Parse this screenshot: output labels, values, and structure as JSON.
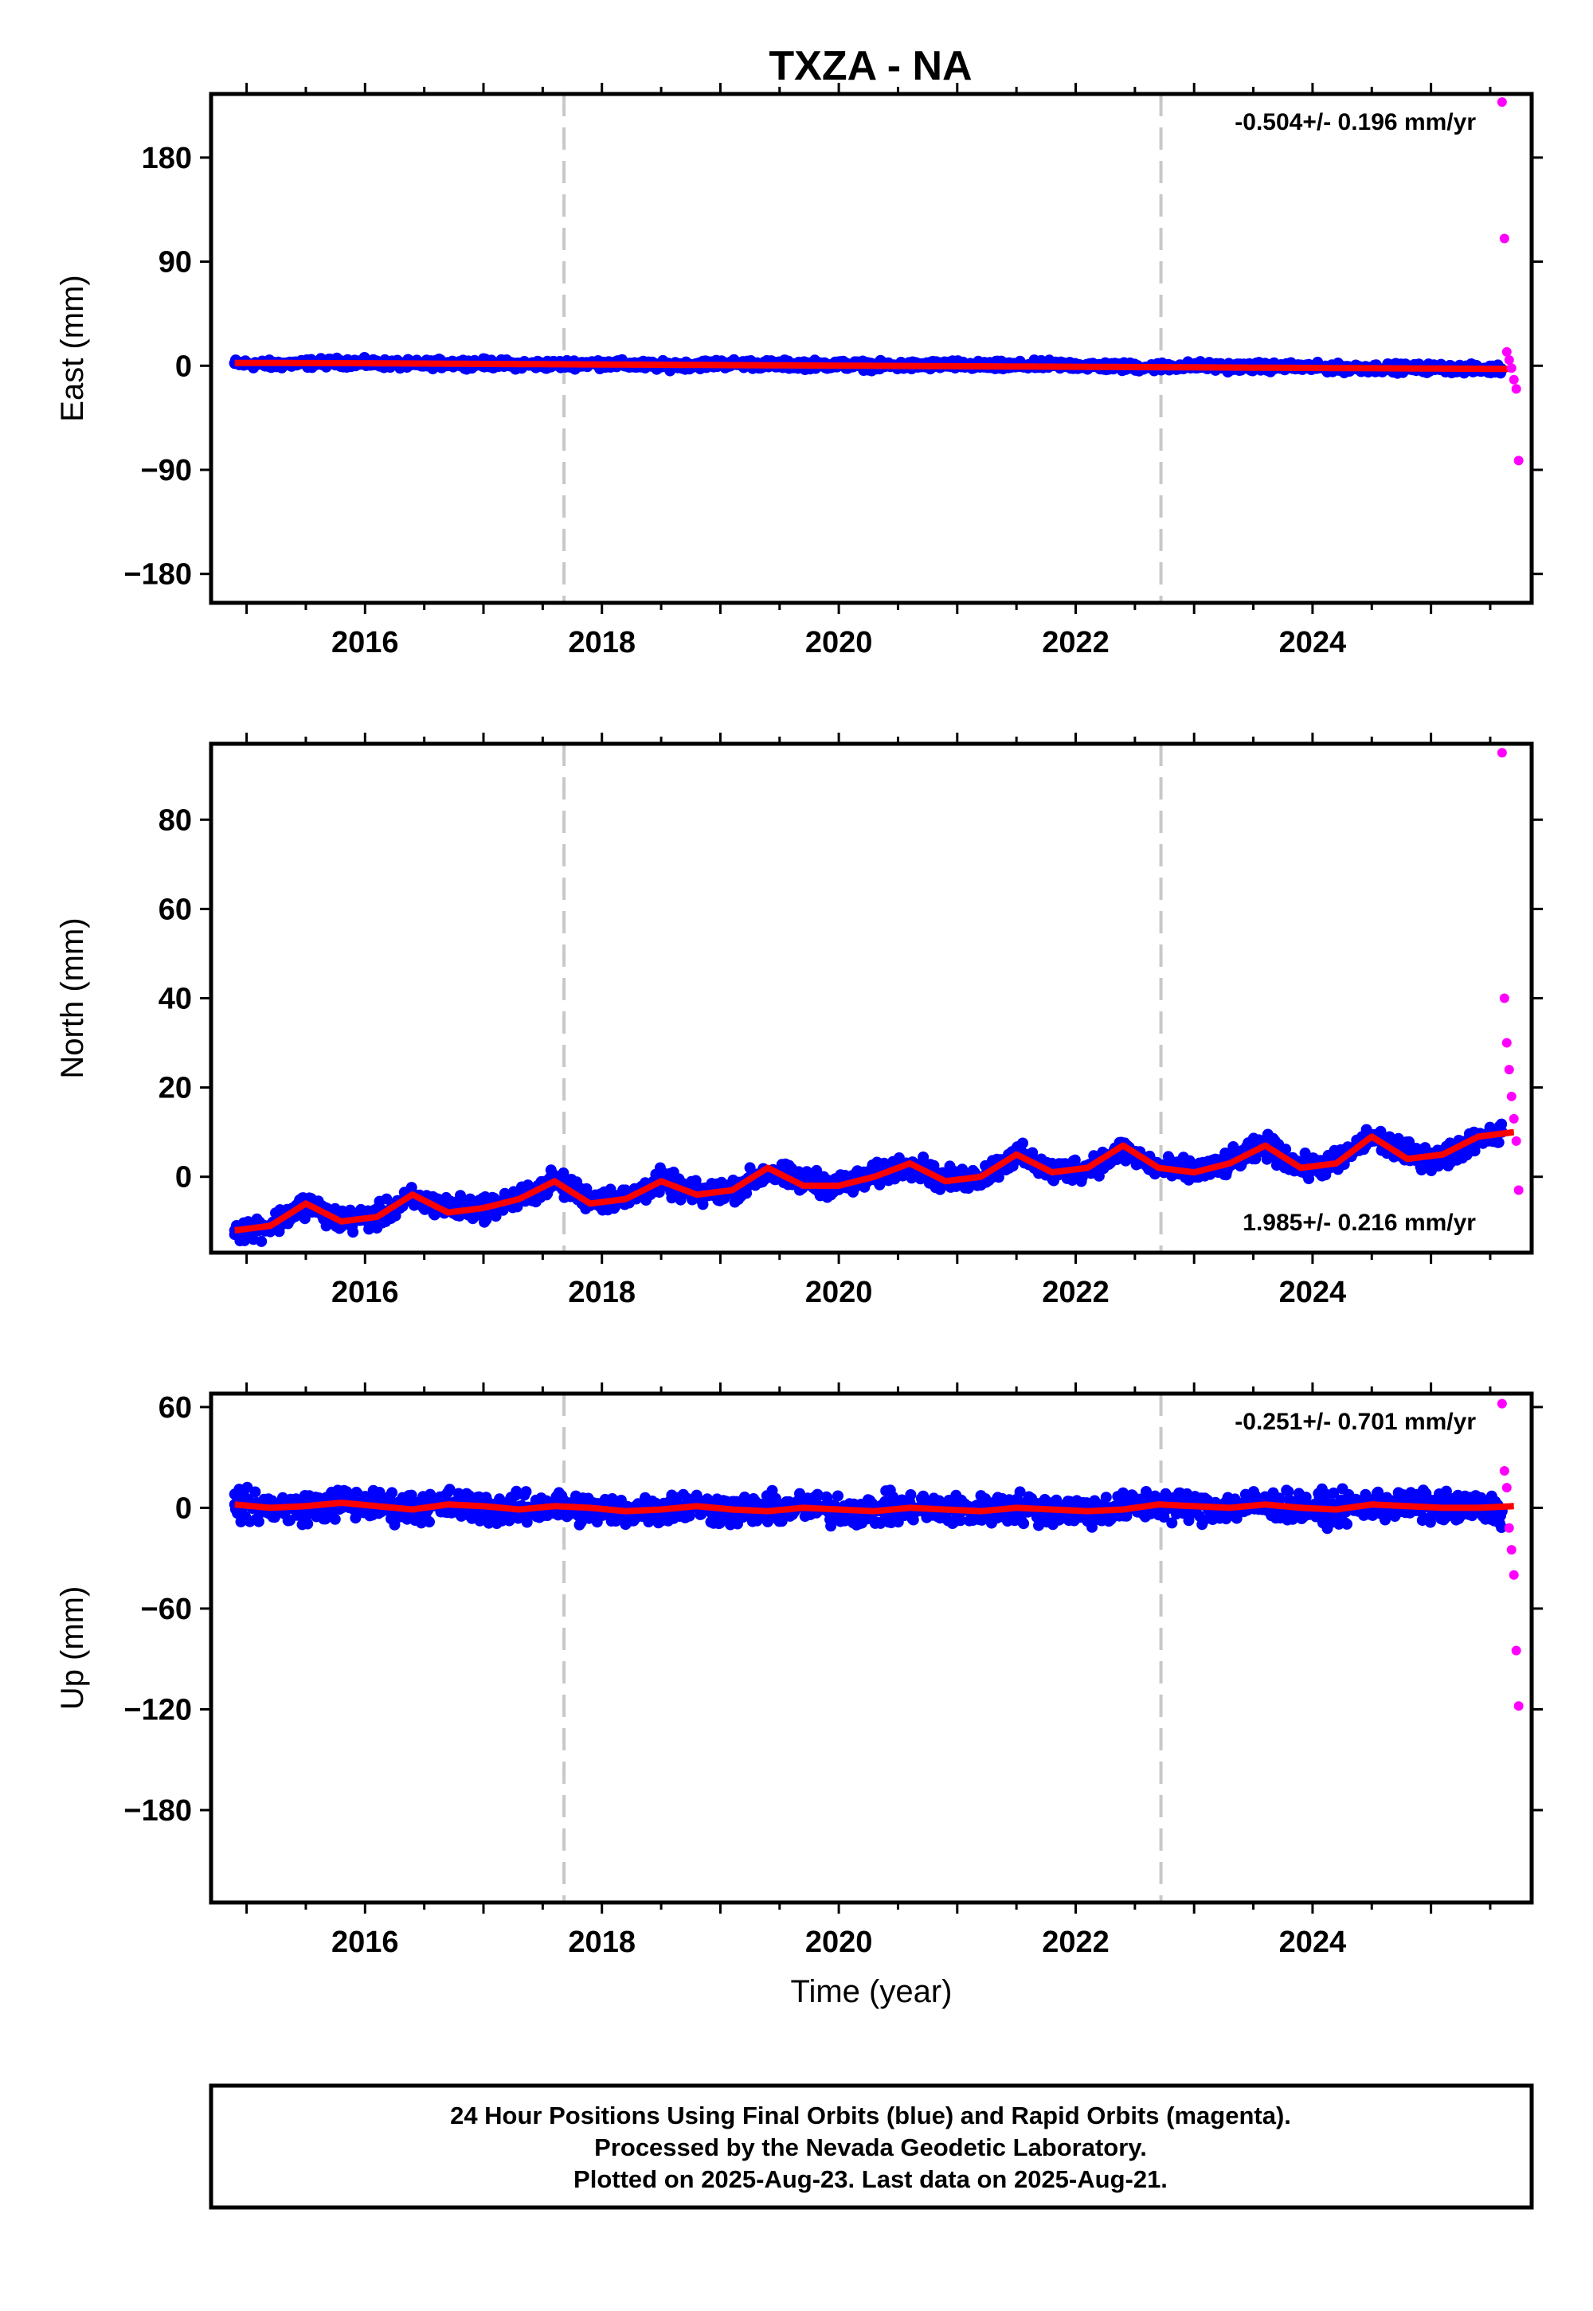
{
  "title": "TXZA - NA",
  "chart_data": [
    {
      "type": "scatter",
      "ylabel": "East (mm)",
      "xlabel": "",
      "xlim": [
        2014.7,
        2025.85
      ],
      "ylim": [
        -205,
        235
      ],
      "yticks": [
        -180,
        -90,
        0,
        90,
        180
      ],
      "ytick_labels": [
        "−180",
        "−90",
        "0",
        "90",
        "180"
      ],
      "xticks": [
        2016,
        2018,
        2020,
        2022,
        2024
      ],
      "xtick_labels": [
        "2016",
        "2018",
        "2020",
        "2022",
        "2024"
      ],
      "breaks": [
        2017.68,
        2022.72
      ],
      "rate_label": "-0.504+/- 0.196 mm/yr",
      "rate_position": "top-right",
      "series": [
        {
          "color": "#0000ff",
          "x": [
            2014.9,
            2015.2,
            2015.5,
            2015.8,
            2016.1,
            2016.4,
            2016.7,
            2017.0,
            2017.3,
            2017.6,
            2017.9,
            2018.2,
            2018.5,
            2018.8,
            2019.1,
            2019.4,
            2019.7,
            2020.0,
            2020.3,
            2020.6,
            2020.9,
            2021.2,
            2021.5,
            2021.8,
            2022.1,
            2022.4,
            2022.7,
            2023.0,
            2023.3,
            2023.6,
            2023.9,
            2024.2,
            2024.5,
            2024.8,
            2025.1,
            2025.4,
            2025.6
          ],
          "values": [
            2,
            1,
            2,
            3,
            2,
            1,
            2,
            2,
            1,
            1,
            2,
            1,
            0,
            1,
            2,
            1,
            1,
            1,
            0,
            0,
            1,
            0,
            0,
            1,
            0,
            -1,
            -1,
            0,
            -1,
            -1,
            -1,
            -2,
            -2,
            -2,
            -2,
            -3,
            -3
          ]
        },
        {
          "color": "#ff00ff",
          "x": [
            2025.6,
            2025.62,
            2025.64,
            2025.66,
            2025.68,
            2025.7,
            2025.72,
            2025.74
          ],
          "values": [
            228,
            110,
            12,
            5,
            -2,
            -12,
            -20,
            -82
          ]
        }
      ],
      "fit": {
        "color": "#ff0000",
        "x": [
          2014.9,
          2016.0,
          2017.0,
          2018.0,
          2019.0,
          2020.0,
          2021.0,
          2022.0,
          2023.0,
          2024.0,
          2025.0,
          2025.7
        ],
        "values": [
          2.5,
          2.2,
          1.6,
          1.1,
          0.6,
          0.1,
          -0.4,
          -0.9,
          -1.4,
          -1.9,
          -2.4,
          -2.8
        ]
      }
    },
    {
      "type": "scatter",
      "ylabel": "North (mm)",
      "xlabel": "",
      "xlim": [
        2014.7,
        2025.85
      ],
      "ylim": [
        -17,
        97
      ],
      "yticks": [
        0,
        20,
        40,
        60,
        80
      ],
      "ytick_labels": [
        "0",
        "20",
        "40",
        "60",
        "80"
      ],
      "xticks": [
        2016,
        2018,
        2020,
        2022,
        2024
      ],
      "xtick_labels": [
        "2016",
        "2018",
        "2020",
        "2022",
        "2024"
      ],
      "breaks": [
        2017.68,
        2022.72
      ],
      "rate_label": "1.985+/- 0.216 mm/yr",
      "rate_position": "bottom-right",
      "series": [
        {
          "color": "#0000ff",
          "x": [
            2014.9,
            2015.2,
            2015.5,
            2015.8,
            2016.1,
            2016.4,
            2016.7,
            2017.0,
            2017.3,
            2017.6,
            2017.9,
            2018.2,
            2018.5,
            2018.8,
            2019.1,
            2019.4,
            2019.7,
            2020.0,
            2020.3,
            2020.6,
            2020.9,
            2021.2,
            2021.5,
            2021.8,
            2022.1,
            2022.4,
            2022.7,
            2023.0,
            2023.3,
            2023.6,
            2023.9,
            2024.2,
            2024.5,
            2024.8,
            2025.1,
            2025.4,
            2025.6
          ],
          "values": [
            -12,
            -11,
            -6,
            -10,
            -9,
            -5,
            -7,
            -7,
            -5,
            -1,
            -5,
            -5,
            -1,
            -4,
            -3,
            1,
            -1,
            -2,
            0,
            3,
            -1,
            0,
            5,
            1,
            2,
            6,
            2,
            1,
            3,
            7,
            2,
            3,
            9,
            5,
            4,
            9,
            10
          ]
        },
        {
          "color": "#ff00ff",
          "x": [
            2025.6,
            2025.62,
            2025.64,
            2025.66,
            2025.68,
            2025.7,
            2025.72,
            2025.74
          ],
          "values": [
            95,
            40,
            30,
            24,
            18,
            13,
            8,
            -3
          ]
        }
      ],
      "fit": {
        "color": "#ff0000",
        "x": [
          2014.9,
          2015.2,
          2015.5,
          2015.8,
          2016.1,
          2016.4,
          2016.7,
          2017.0,
          2017.3,
          2017.6,
          2017.9,
          2018.2,
          2018.5,
          2018.8,
          2019.1,
          2019.4,
          2019.7,
          2020.0,
          2020.3,
          2020.6,
          2020.9,
          2021.2,
          2021.5,
          2021.8,
          2022.1,
          2022.4,
          2022.7,
          2023.0,
          2023.3,
          2023.6,
          2023.9,
          2024.2,
          2024.5,
          2024.8,
          2025.1,
          2025.4,
          2025.7
        ],
        "values": [
          -12,
          -11,
          -6,
          -10,
          -9,
          -4,
          -8,
          -7,
          -5,
          -1,
          -6,
          -5,
          -1,
          -4,
          -3,
          2,
          -2,
          -2,
          0,
          3,
          -1,
          0,
          5,
          1,
          2,
          7,
          2,
          1,
          3,
          7,
          2,
          3,
          9,
          4,
          5,
          9,
          10
        ]
      }
    },
    {
      "type": "scatter",
      "ylabel": "Up (mm)",
      "xlabel": "Time (year)",
      "xlim": [
        2014.7,
        2025.85
      ],
      "ylim": [
        -235,
        68
      ],
      "yticks": [
        -180,
        -120,
        -60,
        0,
        60
      ],
      "ytick_labels": [
        "−180",
        "−120",
        "−60",
        "0",
        "60"
      ],
      "xticks": [
        2016,
        2018,
        2020,
        2022,
        2024
      ],
      "xtick_labels": [
        "2016",
        "2018",
        "2020",
        "2022",
        "2024"
      ],
      "breaks": [
        2017.68,
        2022.72
      ],
      "rate_label": "-0.251+/- 0.701 mm/yr",
      "rate_position": "top-right",
      "series": [
        {
          "color": "#0000ff",
          "x": [
            2014.9,
            2015.2,
            2015.5,
            2015.8,
            2016.1,
            2016.4,
            2016.7,
            2017.0,
            2017.3,
            2017.6,
            2017.9,
            2018.2,
            2018.5,
            2018.8,
            2019.1,
            2019.4,
            2019.7,
            2020.0,
            2020.3,
            2020.6,
            2020.9,
            2021.2,
            2021.5,
            2021.8,
            2022.1,
            2022.4,
            2022.7,
            2023.0,
            2023.3,
            2023.6,
            2023.9,
            2024.2,
            2024.5,
            2024.8,
            2025.1,
            2025.4,
            2025.6
          ],
          "values": [
            2,
            0,
            0,
            3,
            1,
            0,
            2,
            0,
            -1,
            1,
            -1,
            -2,
            0,
            1,
            -2,
            -1,
            0,
            -1,
            -2,
            0,
            -1,
            -2,
            0,
            -1,
            -2,
            0,
            2,
            0,
            1,
            2,
            0,
            -1,
            2,
            1,
            0,
            0,
            -2
          ]
        },
        {
          "color": "#ff00ff",
          "x": [
            2025.6,
            2025.62,
            2025.64,
            2025.66,
            2025.68,
            2025.7,
            2025.72,
            2025.74
          ],
          "values": [
            62,
            22,
            12,
            -12,
            -25,
            -40,
            -85,
            -118
          ]
        }
      ],
      "fit": {
        "color": "#ff0000",
        "x": [
          2014.9,
          2015.2,
          2015.5,
          2015.8,
          2016.1,
          2016.4,
          2016.7,
          2017.0,
          2017.3,
          2017.6,
          2017.9,
          2018.2,
          2018.5,
          2018.8,
          2019.1,
          2019.4,
          2019.7,
          2020.0,
          2020.3,
          2020.6,
          2020.9,
          2021.2,
          2021.5,
          2021.8,
          2022.1,
          2022.4,
          2022.7,
          2023.0,
          2023.3,
          2023.6,
          2023.9,
          2024.2,
          2024.5,
          2024.8,
          2025.1,
          2025.4,
          2025.7
        ],
        "values": [
          2,
          0,
          1,
          3,
          1,
          -1,
          2,
          1,
          -1,
          1,
          0,
          -2,
          -1,
          1,
          -1,
          -2,
          0,
          -1,
          -2,
          0,
          -1,
          -2,
          0,
          -1,
          -2,
          -1,
          2,
          1,
          0,
          2,
          0,
          -1,
          2,
          1,
          0,
          0,
          1
        ]
      }
    }
  ],
  "footer": {
    "line1": "24 Hour Positions Using Final Orbits (blue) and Rapid Orbits (magenta).",
    "line2": "Processed by the Nevada Geodetic Laboratory.",
    "line3": "Plotted on 2025-Aug-23. Last data on 2025-Aug-21."
  }
}
